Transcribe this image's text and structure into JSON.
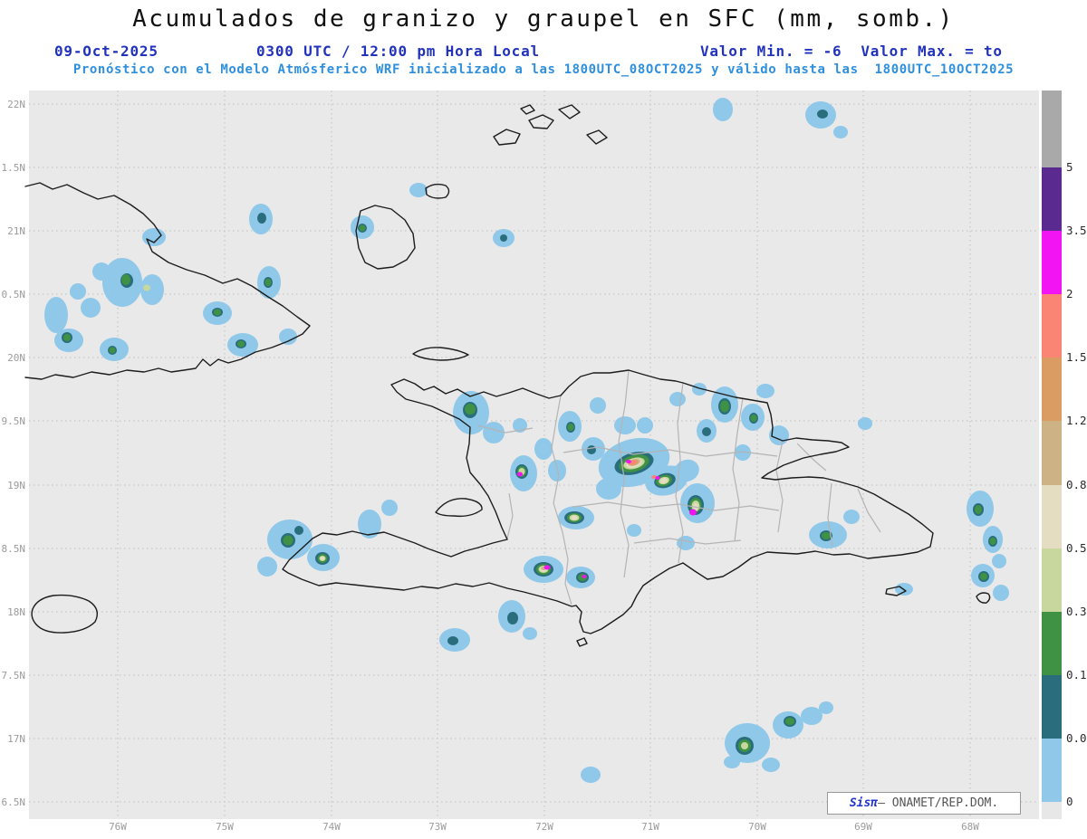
{
  "header": {
    "title": "Acumulados de granizo y graupel en SFC (mm, somb.)",
    "date": "09-Oct-2025",
    "time_label": "0300 UTC / 12:00 pm Hora Local",
    "minmax_label": "Valor Min. = -6  Valor Max. = to",
    "model_label": "Pronóstico con el Modelo Atmósferico WRF inicializado a las 1800UTC_08OCT2025 y válido hasta las  1800UTC_10OCT2025"
  },
  "axes": {
    "y_ticks": [
      "22N",
      "1.5N",
      "21N",
      "0.5N",
      "20N",
      "9.5N",
      "19N",
      "8.5N",
      "18N",
      "7.5N",
      "17N",
      "6.5N"
    ],
    "x_ticks": [
      "76W",
      "75W",
      "74W",
      "73W",
      "72W",
      "71W",
      "70W",
      "69W",
      "68W"
    ]
  },
  "colorbar": {
    "tick_labels": [
      "5",
      "3.5",
      "2",
      "1.5",
      "1.2",
      "0.8",
      "0.5",
      "0.3",
      "0.1",
      "0.05",
      "0"
    ],
    "segment_colors_top_to_bottom": [
      "#a9a9a9",
      "#5b2a91",
      "#f214f2",
      "#fa8575",
      "#db9c63",
      "#cdb286",
      "#e5ddc2",
      "#c8d79e",
      "#3f9243",
      "#2a6e7e",
      "#8fc8e9",
      "#e7e7e7"
    ]
  },
  "credit": {
    "brand": "Sisπ",
    "text": "– ONAMET/REP.DOM."
  },
  "chart_data": {
    "type": "heatmap",
    "title": "Acumulados de granizo y graupel en SFC (mm, somb.)",
    "units": "mm",
    "color_levels_mm": [
      0,
      0.05,
      0.1,
      0.3,
      0.5,
      0.8,
      1.2,
      1.5,
      2,
      3.5,
      5
    ],
    "palette_low_to_high": [
      "#e7e7e7",
      "#8fc8e9",
      "#2a6e7e",
      "#3f9243",
      "#c8d79e",
      "#e5ddc2",
      "#cdb286",
      "#db9c63",
      "#fa8575",
      "#f214f2",
      "#5b2a91",
      "#a9a9a9"
    ],
    "x_tick_labels": [
      "76W",
      "75W",
      "74W",
      "73W",
      "72W",
      "71W",
      "70W",
      "69W",
      "68W"
    ],
    "y_tick_labels": [
      "22N",
      "1.5N",
      "21N",
      "0.5N",
      "20N",
      "9.5N",
      "19N",
      "8.5N",
      "18N",
      "7.5N",
      "17N",
      "6.5N"
    ],
    "valor_min": "-6",
    "valor_max": "to",
    "legend_position": "right"
  }
}
